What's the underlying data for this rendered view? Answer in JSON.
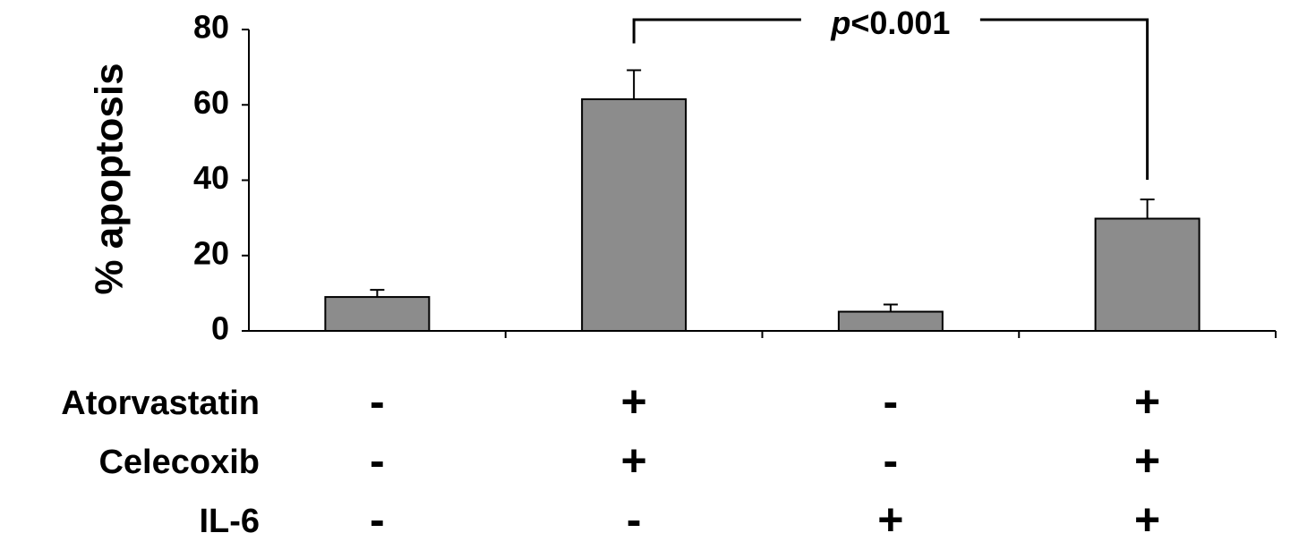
{
  "chart_data": {
    "type": "bar",
    "y_label": "% apoptosis",
    "categories": [
      null,
      null,
      null,
      null
    ],
    "values": [
      9.0,
      61.5,
      5.1,
      29.8
    ],
    "errors": [
      1.9,
      7.7,
      1.9,
      5.1
    ],
    "color": "#8c8c8c",
    "ylim": [
      0,
      80
    ],
    "yticks": [
      0,
      20,
      40,
      60,
      80
    ],
    "significance": {
      "bracket": [
        1,
        3
      ],
      "symbol": "p",
      "label": "<0.001"
    },
    "treatments": [
      {
        "name": "Atorvastatin",
        "signs": [
          "-",
          "+",
          "-",
          "+"
        ]
      },
      {
        "name": "Celecoxib",
        "signs": [
          "-",
          "+",
          "-",
          "+"
        ]
      },
      {
        "name": "IL-6",
        "signs": [
          "-",
          "-",
          "+",
          "+"
        ]
      }
    ]
  }
}
